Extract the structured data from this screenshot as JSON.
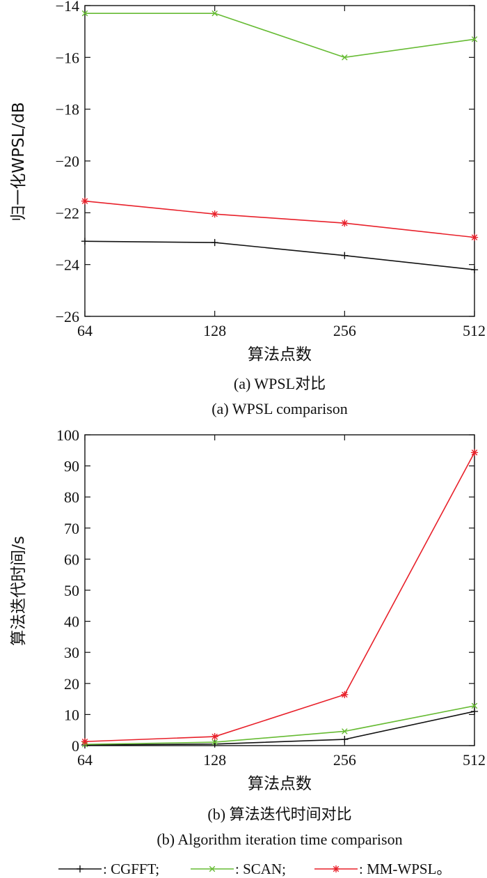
{
  "chart_data": [
    {
      "type": "line",
      "title": "",
      "xlabel": "算法点数",
      "ylabel": "归一化WPSL/dB",
      "categories": [
        "64",
        "128",
        "256",
        "512"
      ],
      "ylim": [
        -26,
        -14
      ],
      "yticks": [
        -14,
        -16,
        -18,
        -20,
        -22,
        -24,
        -26
      ],
      "grid": false,
      "caption_cn": "(a) WPSL对比",
      "caption_en": "(a) WPSL comparison",
      "series": [
        {
          "name": "CGFFT",
          "color": "#111111",
          "marker": "plus",
          "values": [
            -23.1,
            -23.15,
            -23.65,
            -24.2
          ]
        },
        {
          "name": "SCAN",
          "color": "#66bb33",
          "marker": "x",
          "values": [
            -14.3,
            -14.3,
            -16.0,
            -15.3
          ]
        },
        {
          "name": "MM-WPSL",
          "color": "#e8202a",
          "marker": "star",
          "values": [
            -21.55,
            -22.05,
            -22.4,
            -22.95
          ]
        }
      ]
    },
    {
      "type": "line",
      "title": "",
      "xlabel": "算法点数",
      "ylabel": "算法迭代时间/s",
      "categories": [
        "64",
        "128",
        "256",
        "512"
      ],
      "ylim": [
        0,
        100
      ],
      "yticks": [
        0,
        10,
        20,
        30,
        40,
        50,
        60,
        70,
        80,
        90,
        100
      ],
      "grid": false,
      "caption_cn": "(b) 算法迭代时间对比",
      "caption_en": "(b) Algorithm iteration time comparison",
      "series": [
        {
          "name": "CGFFT",
          "color": "#111111",
          "marker": "plus",
          "values": [
            0.2,
            0.5,
            2.0,
            11.0
          ]
        },
        {
          "name": "SCAN",
          "color": "#66bb33",
          "marker": "x",
          "values": [
            0.4,
            1.1,
            4.6,
            12.8
          ]
        },
        {
          "name": "MM-WPSL",
          "color": "#e8202a",
          "marker": "star",
          "values": [
            1.3,
            2.9,
            16.4,
            94.3
          ]
        }
      ]
    }
  ],
  "legend": {
    "placement": "bottom",
    "items": [
      {
        "label": ": CGFFT;",
        "color": "#111111",
        "marker": "plus"
      },
      {
        "label": ": SCAN;",
        "color": "#66bb33",
        "marker": "x"
      },
      {
        "label": ": MM-WPSL。",
        "color": "#e8202a",
        "marker": "star"
      }
    ]
  }
}
